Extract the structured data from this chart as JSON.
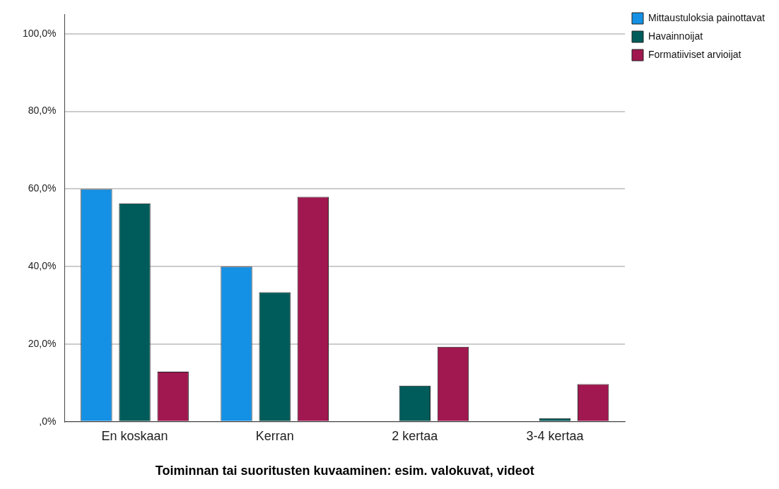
{
  "chart_data": {
    "type": "bar",
    "xlabel": "Toiminnan tai suoritusten kuvaaminen: esim. valokuvat, videot",
    "categories": [
      "En koskaan",
      "Kerran",
      "2 kertaa",
      "3-4 kertaa"
    ],
    "series": [
      {
        "name": "Mittaustuloksia painottavat",
        "color": "#1490e4",
        "values": [
          60,
          40,
          0,
          0
        ]
      },
      {
        "name": "Havainnoijat",
        "color": "#005c5a",
        "values": [
          56.3,
          33.4,
          9.3,
          0.9
        ]
      },
      {
        "name": "Formatiiviset arvioijat",
        "color": "#a0184f",
        "values": [
          12.9,
          58,
          19.3,
          9.7
        ]
      }
    ],
    "ylim": [
      0,
      105
    ],
    "yticks": [
      {
        "value": 0,
        "label": ",0%"
      },
      {
        "value": 20,
        "label": "20,0%"
      },
      {
        "value": 40,
        "label": "40,0%"
      },
      {
        "value": 60,
        "label": "60,0%"
      },
      {
        "value": 80,
        "label": "80,0%"
      },
      {
        "value": 100,
        "label": "100,0%"
      }
    ],
    "grid": "y",
    "legend": "top right"
  }
}
